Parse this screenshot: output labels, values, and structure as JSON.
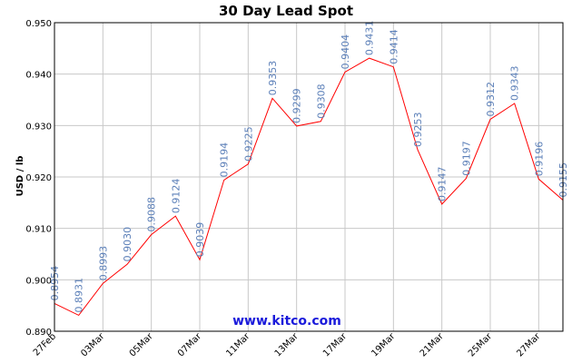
{
  "chart_data": {
    "type": "line",
    "title": "30 Day Lead Spot",
    "ylabel": "USD / lb",
    "xlabel": "",
    "ylim": [
      0.89,
      0.95
    ],
    "yticks": [
      "0.950",
      "0.940",
      "0.930",
      "0.920",
      "0.910",
      "0.900",
      "0.890"
    ],
    "xticks": [
      "27Feb",
      "03Mar",
      "05Mar",
      "07Mar",
      "11Mar",
      "13Mar",
      "17Mar",
      "19Mar",
      "21Mar",
      "25Mar",
      "27Mar"
    ],
    "grid": true,
    "series": [
      {
        "color": "#ff0000",
        "values": [
          0.8954,
          0.8931,
          0.8993,
          0.903,
          0.9088,
          0.9124,
          0.9039,
          0.9194,
          0.9225,
          0.9353,
          0.9299,
          0.9308,
          0.9404,
          0.9431,
          0.9414,
          0.9253,
          0.9147,
          0.9197,
          0.9312,
          0.9343,
          0.9196,
          0.9155
        ],
        "labels": [
          "0.8954",
          "0.8931",
          "0.8993",
          "0.9030",
          "0.9088",
          "0.9124",
          "0.9039",
          "0.9194",
          "0.9225",
          "0.9353",
          "0.9299",
          "0.9308",
          "0.9404",
          "0.9431",
          "0.9414",
          "0.9253",
          "0.9147",
          "0.9197",
          "0.9312",
          "0.9343",
          "0.9196",
          "0.9155"
        ]
      }
    ],
    "watermark": "www.kitco.com"
  }
}
